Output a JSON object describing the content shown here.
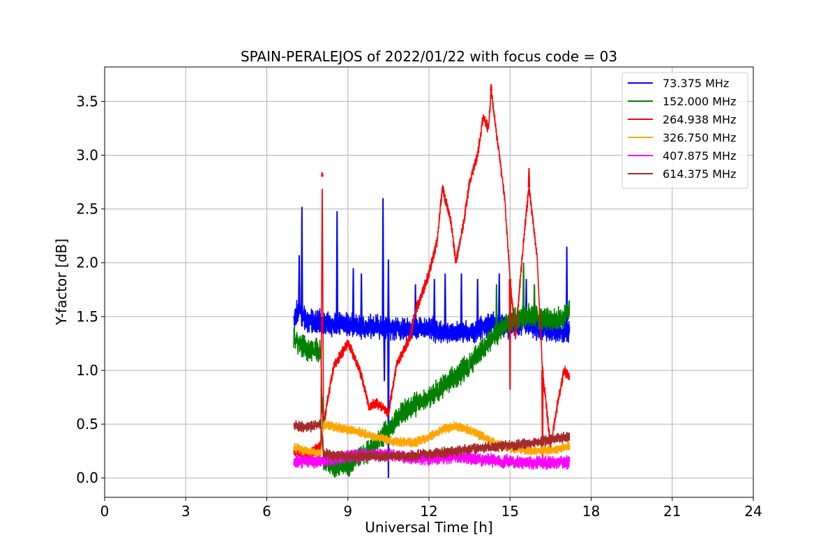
{
  "chart_data": {
    "type": "line",
    "title": "SPAIN-PERALEJOS of 2022/01/22 with focus code = 03",
    "xlabel": "Universal Time [h]",
    "ylabel": "Y-factor [dB]",
    "xlim": [
      0,
      24
    ],
    "ylim": [
      -0.18,
      3.82
    ],
    "xticks": [
      "0",
      "3",
      "6",
      "9",
      "12",
      "15",
      "18",
      "21",
      "24"
    ],
    "yticks": [
      "0.0",
      "0.5",
      "1.0",
      "1.5",
      "2.0",
      "2.5",
      "3.0",
      "3.5"
    ],
    "grid": true,
    "legend_position": "top-right",
    "series": [
      {
        "name": " 73.375 MHz",
        "color": "#0000ff",
        "noise": 0.09,
        "x": [
          7.0,
          7.2,
          7.3,
          7.5,
          8.0,
          8.5,
          8.6,
          9.0,
          9.5,
          10.0,
          10.3,
          10.5,
          11.0,
          11.5,
          12.0,
          12.5,
          13.0,
          13.5,
          14.0,
          14.5,
          15.0,
          15.5,
          16.0,
          16.5,
          17.0,
          17.2
        ],
        "y": [
          1.45,
          1.6,
          1.5,
          1.45,
          1.45,
          1.42,
          1.45,
          1.42,
          1.4,
          1.42,
          1.4,
          1.4,
          1.38,
          1.38,
          1.4,
          1.35,
          1.35,
          1.35,
          1.4,
          1.45,
          1.4,
          1.45,
          1.4,
          1.38,
          1.35,
          1.38
        ],
        "spikes": [
          [
            7.3,
            2.52
          ],
          [
            7.2,
            2.07
          ],
          [
            8.6,
            2.48
          ],
          [
            10.3,
            2.6
          ],
          [
            9.2,
            1.95
          ],
          [
            9.5,
            1.9
          ],
          [
            10.5,
            2.03
          ],
          [
            11.5,
            1.8
          ],
          [
            12.2,
            1.85
          ],
          [
            12.6,
            1.9
          ],
          [
            13.2,
            1.9
          ],
          [
            13.8,
            1.85
          ],
          [
            14.6,
            1.9
          ],
          [
            15.6,
            1.85
          ],
          [
            17.1,
            2.15
          ]
        ],
        "dips": [
          [
            10.5,
            0.0
          ],
          [
            10.35,
            0.9
          ]
        ]
      },
      {
        "name": "152.000 MHz",
        "color": "#008000",
        "noise": 0.09,
        "x": [
          7.0,
          7.5,
          8.0,
          8.1,
          8.5,
          9.0,
          9.5,
          10.0,
          10.5,
          11.0,
          11.5,
          12.0,
          12.5,
          13.0,
          13.5,
          14.0,
          14.5,
          15.0,
          15.5,
          16.0,
          16.5,
          17.0,
          17.2
        ],
        "y": [
          1.3,
          1.18,
          1.2,
          0.15,
          0.12,
          0.12,
          0.2,
          0.3,
          0.45,
          0.6,
          0.68,
          0.75,
          0.85,
          0.95,
          1.05,
          1.2,
          1.35,
          1.45,
          1.5,
          1.5,
          1.45,
          1.5,
          1.55
        ],
        "spikes": [
          [
            15.5,
            2.0
          ],
          [
            14.5,
            1.8
          ],
          [
            15.9,
            1.8
          ]
        ],
        "dips": []
      },
      {
        "name": "264.938 MHz",
        "color": "#ff0000",
        "noise": 0.04,
        "x": [
          7.0,
          7.5,
          8.0,
          8.05,
          8.1,
          8.3,
          8.5,
          9.0,
          9.2,
          9.5,
          9.8,
          10.0,
          10.3,
          10.5,
          10.8,
          11.0,
          11.3,
          11.5,
          11.8,
          12.0,
          12.3,
          12.5,
          12.8,
          13.0,
          13.3,
          13.5,
          13.8,
          14.0,
          14.2,
          14.3,
          14.5,
          14.8,
          15.0,
          15.2,
          15.5,
          15.7,
          15.8,
          16.0,
          16.2,
          16.5,
          16.8,
          17.0,
          17.2
        ],
        "y": [
          0.25,
          0.2,
          0.3,
          2.8,
          0.5,
          0.8,
          1.05,
          1.25,
          1.15,
          0.95,
          0.65,
          0.7,
          0.65,
          0.6,
          1.05,
          1.15,
          1.3,
          1.55,
          1.75,
          1.9,
          2.2,
          2.7,
          2.4,
          2.0,
          2.4,
          2.75,
          3.0,
          3.35,
          3.25,
          3.6,
          3.2,
          2.6,
          1.85,
          1.3,
          2.2,
          2.7,
          2.5,
          2.05,
          1.0,
          0.3,
          0.75,
          1.0,
          0.95
        ],
        "spikes": [
          [
            8.05,
            2.84
          ],
          [
            14.3,
            3.66
          ],
          [
            15.7,
            2.88
          ]
        ],
        "dips": [
          [
            15.0,
            0.82
          ],
          [
            16.2,
            0.1
          ]
        ]
      },
      {
        "name": "326.750 MHz",
        "color": "#ffa500",
        "noise": 0.035,
        "x": [
          7.0,
          7.5,
          8.0,
          8.1,
          8.5,
          9.0,
          9.5,
          10.0,
          10.5,
          11.0,
          11.5,
          12.0,
          12.5,
          13.0,
          13.5,
          14.0,
          14.5,
          15.0,
          15.5,
          16.0,
          16.5,
          17.0,
          17.2
        ],
        "y": [
          0.28,
          0.25,
          0.22,
          0.5,
          0.48,
          0.45,
          0.42,
          0.38,
          0.35,
          0.33,
          0.33,
          0.38,
          0.45,
          0.48,
          0.45,
          0.38,
          0.32,
          0.28,
          0.26,
          0.25,
          0.26,
          0.28,
          0.3
        ],
        "spikes": [],
        "dips": []
      },
      {
        "name": "407.875 MHz",
        "color": "#ff00ff",
        "noise": 0.05,
        "x": [
          7.0,
          8.0,
          9.0,
          10.0,
          11.0,
          12.0,
          13.0,
          14.0,
          15.0,
          16.0,
          17.0,
          17.2
        ],
        "y": [
          0.15,
          0.16,
          0.2,
          0.22,
          0.2,
          0.18,
          0.2,
          0.17,
          0.15,
          0.14,
          0.14,
          0.15
        ],
        "spikes": [],
        "dips": []
      },
      {
        "name": "614.375 MHz",
        "color": "#a52a2a",
        "noise": 0.04,
        "x": [
          7.0,
          7.5,
          8.0,
          8.1,
          9.0,
          10.0,
          11.0,
          12.0,
          13.0,
          14.0,
          15.0,
          16.0,
          16.5,
          17.0,
          17.2
        ],
        "y": [
          0.48,
          0.47,
          0.5,
          0.22,
          0.2,
          0.2,
          0.2,
          0.22,
          0.25,
          0.28,
          0.3,
          0.33,
          0.36,
          0.38,
          0.38
        ],
        "spikes": [],
        "dips": []
      }
    ]
  }
}
